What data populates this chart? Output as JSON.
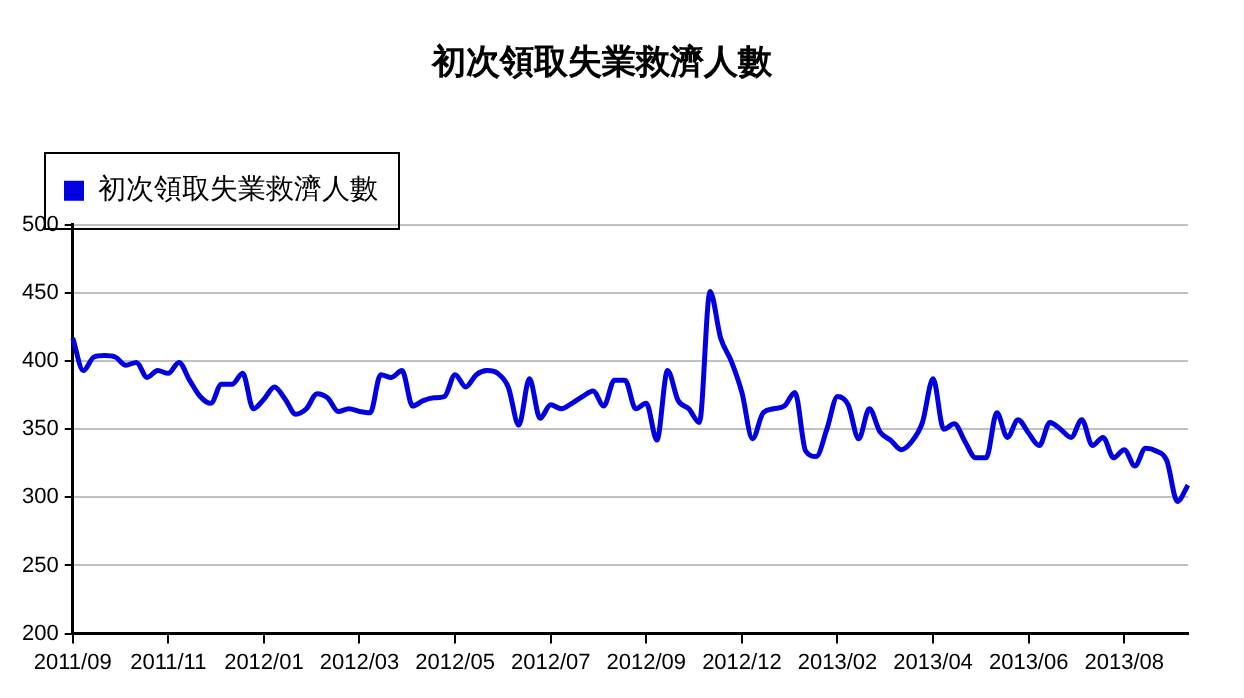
{
  "chart_data": {
    "type": "line",
    "title": "初次領取失業救濟人數",
    "categories": [
      "2011/09",
      null,
      null,
      null,
      null,
      null,
      null,
      null,
      null,
      "2011/11",
      null,
      null,
      null,
      null,
      null,
      null,
      null,
      null,
      "2012/01",
      null,
      null,
      null,
      null,
      null,
      null,
      null,
      null,
      "2012/03",
      null,
      null,
      null,
      null,
      null,
      null,
      null,
      null,
      "2012/05",
      null,
      null,
      null,
      null,
      null,
      null,
      null,
      null,
      "2012/07",
      null,
      null,
      null,
      null,
      null,
      null,
      null,
      null,
      "2012/09",
      null,
      null,
      null,
      null,
      null,
      null,
      null,
      null,
      "2012/12",
      null,
      null,
      null,
      null,
      null,
      null,
      null,
      null,
      "2013/02",
      null,
      null,
      null,
      null,
      null,
      null,
      null,
      null,
      "2013/04",
      null,
      null,
      null,
      null,
      null,
      null,
      null,
      null,
      "2013/06",
      null,
      null,
      null,
      null,
      null,
      null,
      null,
      null,
      "2013/08",
      null,
      null,
      null,
      null,
      null,
      null
    ],
    "series": [
      {
        "name": "初次領取失業救濟人數",
        "color": "#0000e0",
        "values": [
          417,
          393,
          403,
          404,
          403,
          397,
          399,
          388,
          393,
          391,
          399,
          386,
          374,
          369,
          383,
          383,
          391,
          365,
          372,
          381,
          372,
          361,
          365,
          376,
          373,
          363,
          365,
          363,
          362,
          390,
          388,
          393,
          367,
          371,
          373,
          374,
          390,
          381,
          390,
          393,
          391,
          381,
          353,
          387,
          358,
          368,
          365,
          369,
          374,
          378,
          367,
          386,
          386,
          365,
          369,
          342,
          393,
          371,
          365,
          355,
          451,
          417,
          400,
          377,
          343,
          362,
          365,
          367,
          377,
          334,
          330,
          350,
          374,
          368,
          343,
          365,
          348,
          342,
          335,
          341,
          355,
          387,
          350,
          354,
          341,
          329,
          329,
          362,
          344,
          357,
          347,
          338,
          355,
          350,
          344,
          357,
          338,
          344,
          329,
          335,
          323,
          336,
          334,
          327,
          297,
          309
        ]
      }
    ],
    "ylim": [
      200,
      500
    ],
    "yticks": [
      200,
      250,
      300,
      350,
      400,
      450,
      500
    ],
    "grid": "y",
    "legend": "top left",
    "marker": "none",
    "line_style": "solid"
  }
}
